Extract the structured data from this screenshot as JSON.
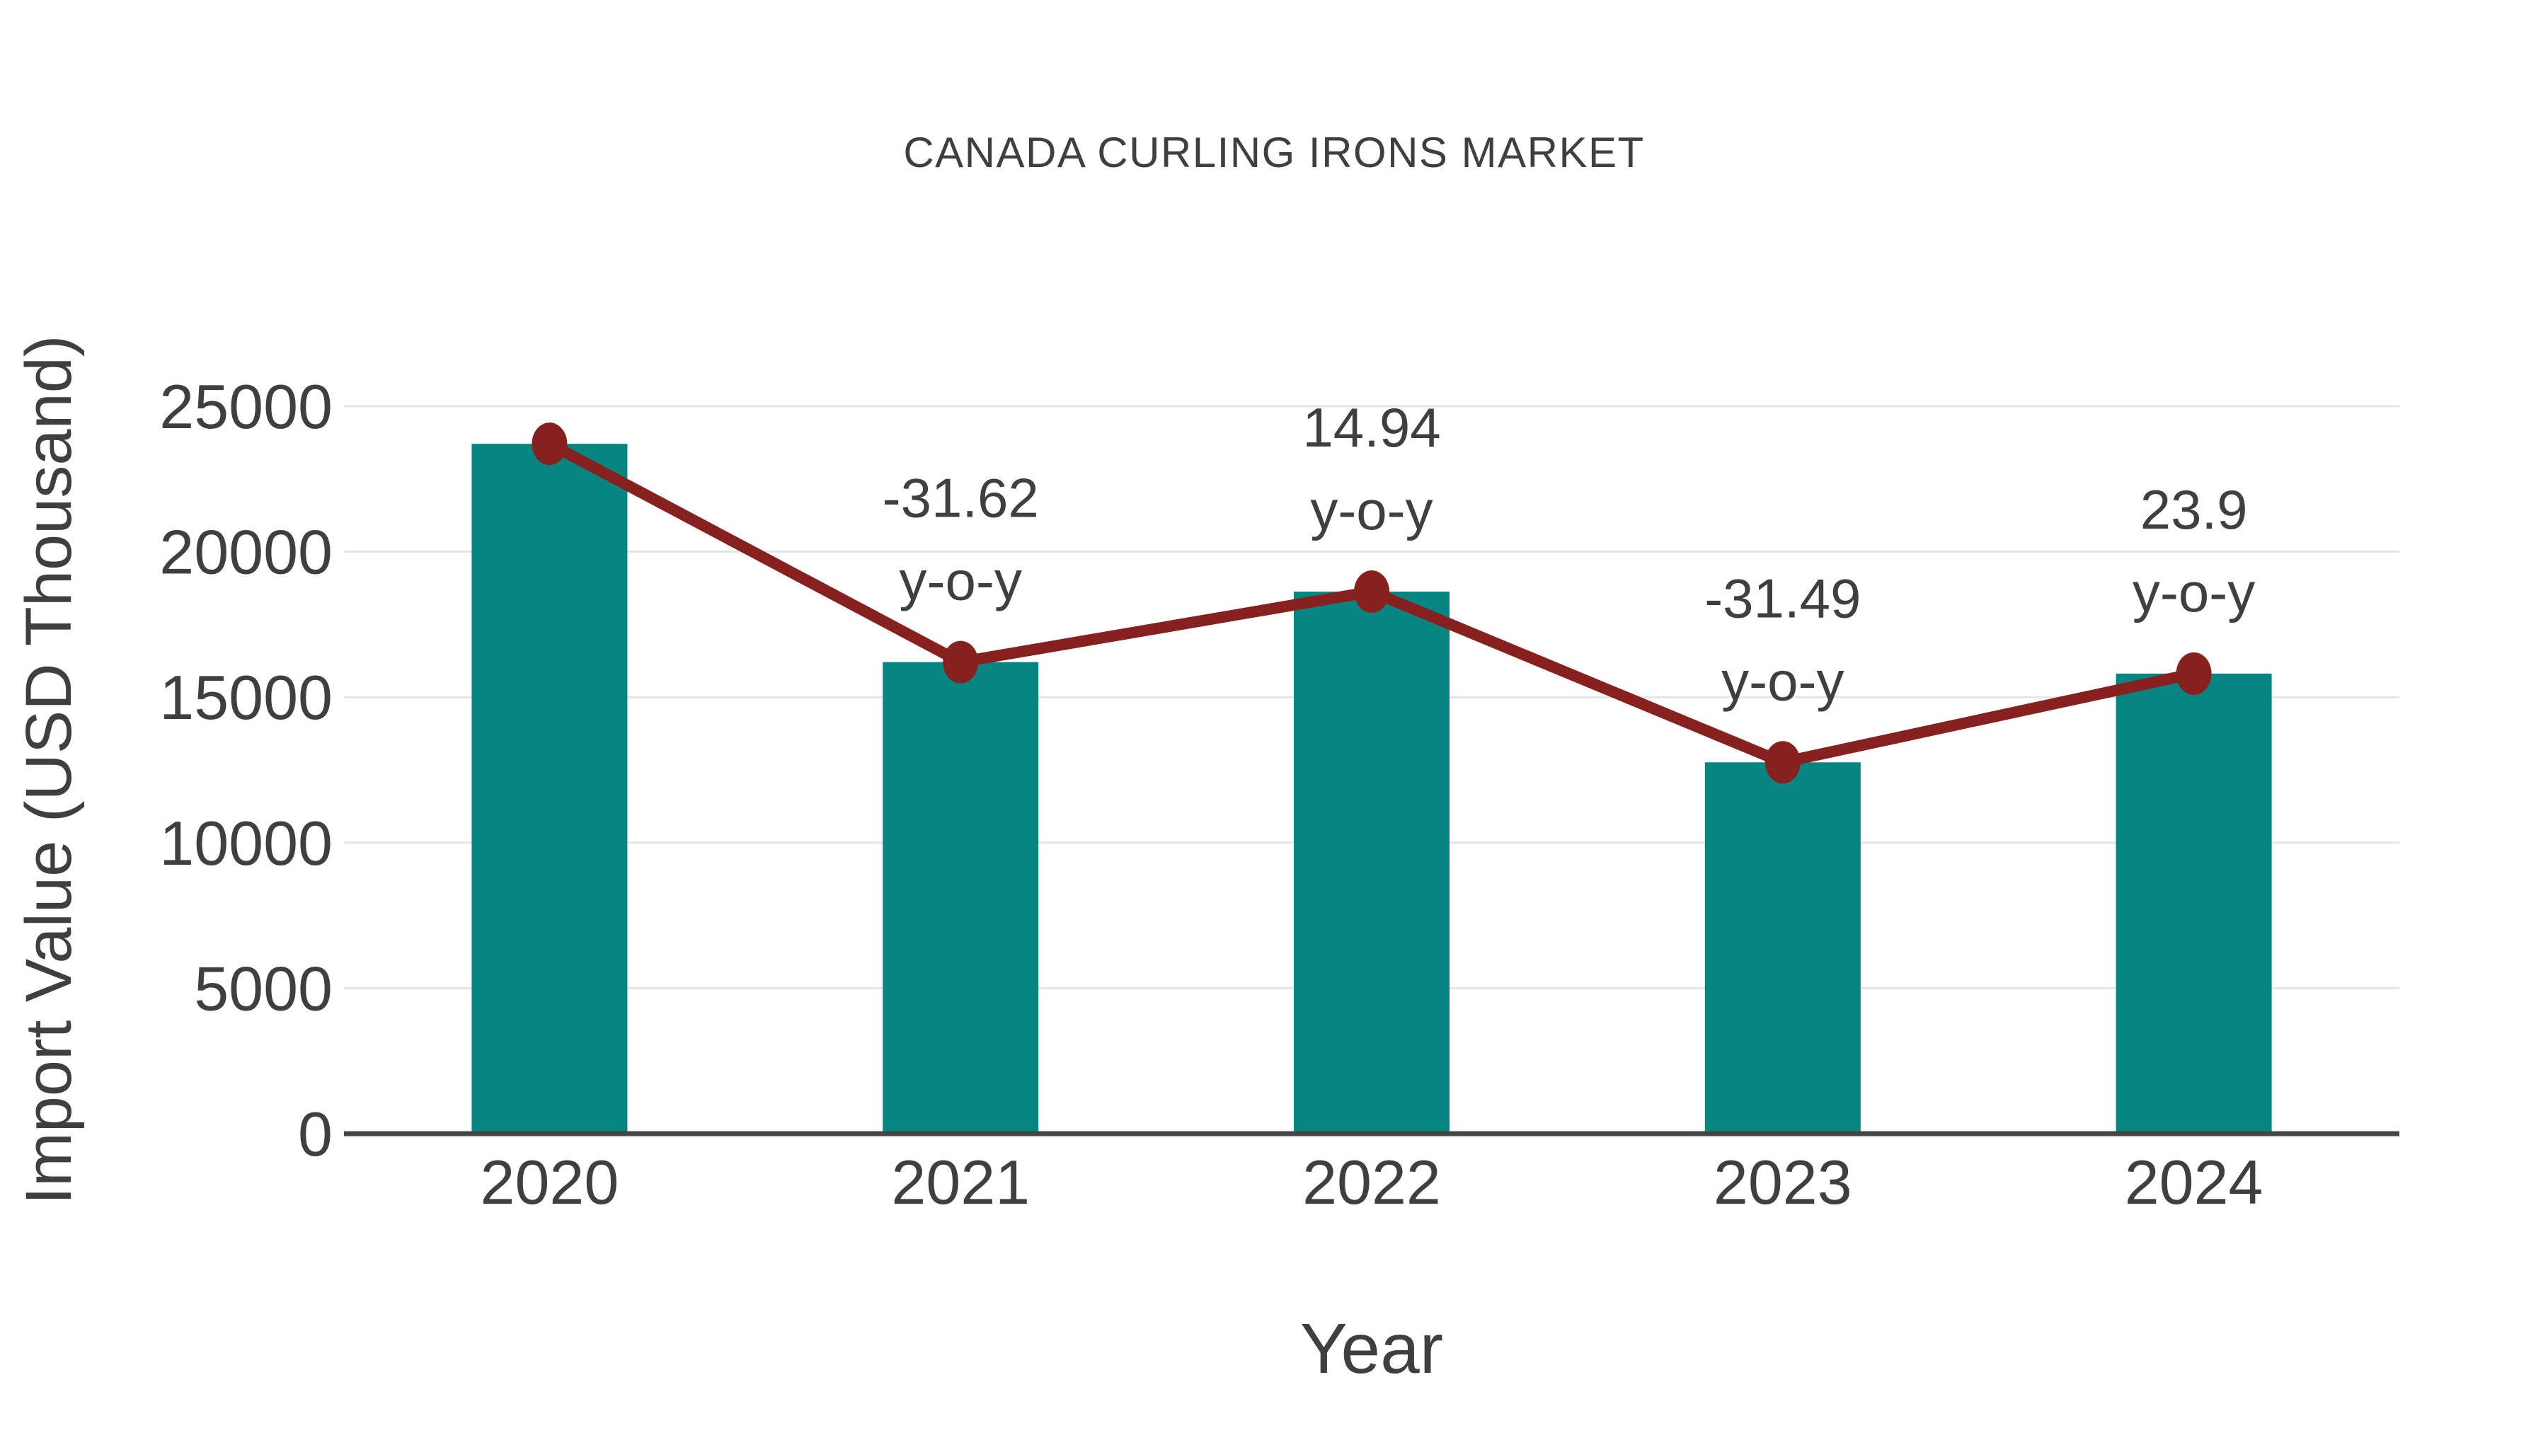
{
  "page": {
    "background": "#FFFFFF"
  },
  "chart_data": {
    "type": "bar",
    "title": "CANADA CURLING IRONS MARKET",
    "xlabel": "Year",
    "ylabel": "Import Value (USD Thousand)",
    "categories": [
      "2020",
      "2021",
      "2022",
      "2023",
      "2024"
    ],
    "series": [
      {
        "name": "Import Value",
        "type": "bar",
        "color": "#078581",
        "values": [
          23707,
          16206,
          18627,
          12761,
          15811
        ]
      },
      {
        "name": "Year-over-year trend",
        "type": "line",
        "color": "#862120",
        "values": [
          23707,
          16206,
          18627,
          12761,
          15811
        ]
      }
    ],
    "point_labels": [
      {
        "category": "2021",
        "line1": "-31.62",
        "line2": "y-o-y"
      },
      {
        "category": "2022",
        "line1": "14.94",
        "line2": "y-o-y"
      },
      {
        "category": "2023",
        "line1": "-31.49",
        "line2": "y-o-y"
      },
      {
        "category": "2024",
        "line1": "23.9",
        "line2": "y-o-y"
      }
    ],
    "ylim": [
      0,
      25000
    ],
    "yticks": [
      0,
      5000,
      10000,
      15000,
      20000,
      25000
    ],
    "grid": "horizontal-only",
    "legend_position": "none",
    "colors": {
      "bar": "#078581",
      "line": "#862120",
      "marker": "#862120",
      "text": "#3F3F3F",
      "grid": "#E6E6E6",
      "axis": "#444444",
      "background": "#FFFFFF"
    }
  }
}
